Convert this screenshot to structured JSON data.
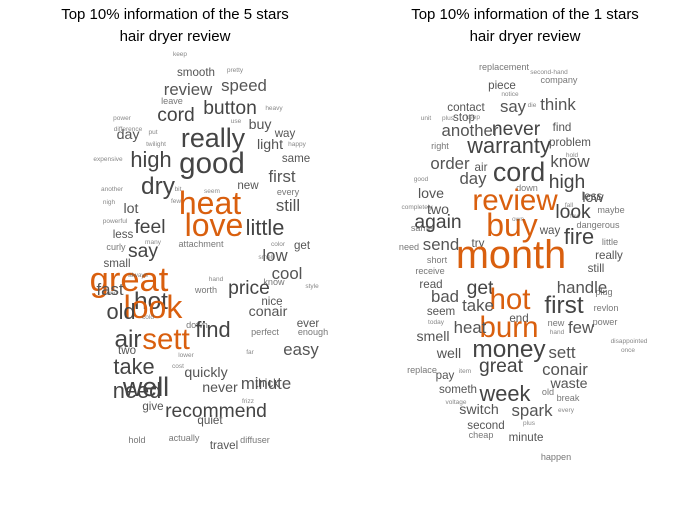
{
  "colors": {
    "grey": "#555555",
    "orange": "#d95f0e",
    "dark": "#444444"
  },
  "panels": [
    {
      "title_line1": "Top 10% information of the 5 stars",
      "title_line2": "hair dryer review",
      "words": [
        {
          "t": "keep",
          "w": 1
        },
        {
          "t": "smooth",
          "w": 3
        },
        {
          "t": "pretty",
          "w": 1
        },
        {
          "t": "review",
          "w": 5
        },
        {
          "t": "speed",
          "w": 5
        },
        {
          "t": "leave",
          "w": 2
        },
        {
          "t": "button",
          "w": 6
        },
        {
          "t": "cord",
          "w": 6
        },
        {
          "t": "heavy",
          "w": 1
        },
        {
          "t": "power",
          "w": 1
        },
        {
          "t": "difference",
          "w": 1
        },
        {
          "t": "use",
          "w": 1
        },
        {
          "t": "buy",
          "w": 4
        },
        {
          "t": "day",
          "w": 4
        },
        {
          "t": "put",
          "w": 1
        },
        {
          "t": "really",
          "w": 9
        },
        {
          "t": "way",
          "w": 3
        },
        {
          "t": "twilight",
          "w": 1
        },
        {
          "t": "light",
          "w": 4
        },
        {
          "t": "happy",
          "w": 1
        },
        {
          "t": "expensive",
          "w": 1
        },
        {
          "t": "high",
          "w": 7
        },
        {
          "t": "good",
          "w": 10
        },
        {
          "t": "same",
          "w": 3
        },
        {
          "t": "first",
          "w": 5
        },
        {
          "t": "another",
          "w": 1
        },
        {
          "t": "dry",
          "w": 8
        },
        {
          "t": "bit",
          "w": 1
        },
        {
          "t": "seem",
          "w": 1
        },
        {
          "t": "new",
          "w": 3
        },
        {
          "t": "every",
          "w": 2
        },
        {
          "t": "nigh",
          "w": 1
        },
        {
          "t": "few",
          "w": 1
        },
        {
          "t": "heat",
          "w": 11,
          "c": "orange"
        },
        {
          "t": "still",
          "w": 5
        },
        {
          "t": "lot",
          "w": 4
        },
        {
          "t": "powerful",
          "w": 1
        },
        {
          "t": "feel",
          "w": 6
        },
        {
          "t": "little",
          "w": 7
        },
        {
          "t": "less",
          "w": 3
        },
        {
          "t": "love",
          "w": 11,
          "c": "orange"
        },
        {
          "t": "curly",
          "w": 2
        },
        {
          "t": "many",
          "w": 1
        },
        {
          "t": "color",
          "w": 1
        },
        {
          "t": "get",
          "w": 3
        },
        {
          "t": "say",
          "w": 6
        },
        {
          "t": "low",
          "w": 5
        },
        {
          "t": "smell",
          "w": 1
        },
        {
          "t": "small",
          "w": 3
        },
        {
          "t": "great",
          "w": 12,
          "c": "orange"
        },
        {
          "t": "attachment",
          "w": 2
        },
        {
          "t": "cool",
          "w": 5
        },
        {
          "t": "always",
          "w": 1
        },
        {
          "t": "fast",
          "w": 5
        },
        {
          "t": "hand",
          "w": 1
        },
        {
          "t": "price",
          "w": 6
        },
        {
          "t": "know",
          "w": 2
        },
        {
          "t": "style",
          "w": 1
        },
        {
          "t": "and",
          "w": 1
        },
        {
          "t": "hot",
          "w": 8
        },
        {
          "t": "look",
          "w": 11,
          "c": "orange"
        },
        {
          "t": "worth",
          "w": 2
        },
        {
          "t": "nice",
          "w": 3
        },
        {
          "t": "old",
          "w": 7
        },
        {
          "t": "conair",
          "w": 4
        },
        {
          "t": "cold",
          "w": 1
        },
        {
          "t": "down",
          "w": 2
        },
        {
          "t": "ever",
          "w": 3
        },
        {
          "t": "air",
          "w": 8
        },
        {
          "t": "sett",
          "w": 10,
          "c": "orange"
        },
        {
          "t": "find",
          "w": 7
        },
        {
          "t": "perfect",
          "w": 2
        },
        {
          "t": "enough",
          "w": 2
        },
        {
          "t": "two",
          "w": 3
        },
        {
          "t": "easy",
          "w": 5
        },
        {
          "t": "take",
          "w": 7
        },
        {
          "t": "far",
          "w": 1
        },
        {
          "t": "lower",
          "w": 1
        },
        {
          "t": "well",
          "w": 9
        },
        {
          "t": "cost",
          "w": 1
        },
        {
          "t": "quickly",
          "w": 4
        },
        {
          "t": "minute",
          "w": 5
        },
        {
          "t": "need",
          "w": 7
        },
        {
          "t": "never",
          "w": 4
        },
        {
          "t": "thick",
          "w": 3
        },
        {
          "t": "give",
          "w": 3
        },
        {
          "t": "recommend",
          "w": 6
        },
        {
          "t": "frizz",
          "w": 1
        },
        {
          "t": "quiet",
          "w": 3
        },
        {
          "t": "hold",
          "w": 2
        },
        {
          "t": "actually",
          "w": 2
        },
        {
          "t": "travel",
          "w": 3
        },
        {
          "t": "diffuser",
          "w": 2
        }
      ]
    },
    {
      "title_line1": "Top 10% information of the 1 stars",
      "title_line2": "hair dryer review",
      "words": [
        {
          "t": "replacement",
          "w": 2
        },
        {
          "t": "second-hand",
          "w": 1
        },
        {
          "t": "piece",
          "w": 3
        },
        {
          "t": "company",
          "w": 2
        },
        {
          "t": "notice",
          "w": 1
        },
        {
          "t": "contact",
          "w": 3
        },
        {
          "t": "say",
          "w": 5
        },
        {
          "t": "die",
          "w": 1
        },
        {
          "t": "think",
          "w": 5
        },
        {
          "t": "unit",
          "w": 1
        },
        {
          "t": "stop",
          "w": 3
        },
        {
          "t": "keep",
          "w": 1
        },
        {
          "t": "plus",
          "w": 1
        },
        {
          "t": "never",
          "w": 6
        },
        {
          "t": "find",
          "w": 3
        },
        {
          "t": "another",
          "w": 5
        },
        {
          "t": "problem",
          "w": 3
        },
        {
          "t": "right",
          "w": 2
        },
        {
          "t": "warranty",
          "w": 7
        },
        {
          "t": "hold",
          "w": 1
        },
        {
          "t": "know",
          "w": 5
        },
        {
          "t": "order",
          "w": 5
        },
        {
          "t": "air",
          "w": 3
        },
        {
          "t": "cord",
          "w": 9
        },
        {
          "t": "good",
          "w": 1
        },
        {
          "t": "day",
          "w": 5
        },
        {
          "t": "down",
          "w": 2
        },
        {
          "t": "high",
          "w": 6
        },
        {
          "t": "less",
          "w": 3
        },
        {
          "t": "love",
          "w": 4
        },
        {
          "t": "review",
          "w": 10,
          "c": "orange"
        },
        {
          "t": "low",
          "w": 4
        },
        {
          "t": "two",
          "w": 4
        },
        {
          "t": "fall",
          "w": 1
        },
        {
          "t": "maybe",
          "w": 2
        },
        {
          "t": "completely",
          "w": 1
        },
        {
          "t": "buy",
          "w": 11,
          "c": "orange"
        },
        {
          "t": "look",
          "w": 6
        },
        {
          "t": "dangerous",
          "w": 2
        },
        {
          "t": "few",
          "w": 1
        },
        {
          "t": "again",
          "w": 6
        },
        {
          "t": "own",
          "w": 1
        },
        {
          "t": "same",
          "w": 2
        },
        {
          "t": "way",
          "w": 3
        },
        {
          "t": "fire",
          "w": 7
        },
        {
          "t": "send",
          "w": 5
        },
        {
          "t": "try",
          "w": 3
        },
        {
          "t": "little",
          "w": 2
        },
        {
          "t": "need",
          "w": 2
        },
        {
          "t": "month",
          "w": 14,
          "c": "orange"
        },
        {
          "t": "really",
          "w": 3
        },
        {
          "t": "short",
          "w": 2
        },
        {
          "t": "still",
          "w": 3
        },
        {
          "t": "receive",
          "w": 2
        },
        {
          "t": "read",
          "w": 3
        },
        {
          "t": "get",
          "w": 6
        },
        {
          "t": "handle",
          "w": 5
        },
        {
          "t": "plug",
          "w": 2
        },
        {
          "t": "bad",
          "w": 5
        },
        {
          "t": "hot",
          "w": 10,
          "c": "orange"
        },
        {
          "t": "first",
          "w": 8
        },
        {
          "t": "revlon",
          "w": 2
        },
        {
          "t": "seem",
          "w": 3
        },
        {
          "t": "take",
          "w": 5
        },
        {
          "t": "end",
          "w": 3
        },
        {
          "t": "today",
          "w": 1
        },
        {
          "t": "burn",
          "w": 10,
          "c": "orange"
        },
        {
          "t": "new",
          "w": 2
        },
        {
          "t": "power",
          "w": 2
        },
        {
          "t": "heat",
          "w": 5
        },
        {
          "t": "few",
          "w": 5
        },
        {
          "t": "smell",
          "w": 4
        },
        {
          "t": "money",
          "w": 8
        },
        {
          "t": "hand",
          "w": 1
        },
        {
          "t": "disappointed",
          "w": 1
        },
        {
          "t": "once",
          "w": 1
        },
        {
          "t": "well",
          "w": 4
        },
        {
          "t": "sett",
          "w": 5
        },
        {
          "t": "replace",
          "w": 2
        },
        {
          "t": "pay",
          "w": 3
        },
        {
          "t": "item",
          "w": 1
        },
        {
          "t": "great",
          "w": 6
        },
        {
          "t": "conair",
          "w": 5
        },
        {
          "t": "someth",
          "w": 3
        },
        {
          "t": "week",
          "w": 7
        },
        {
          "t": "waste",
          "w": 4
        },
        {
          "t": "old",
          "w": 2
        },
        {
          "t": "voltage",
          "w": 1
        },
        {
          "t": "break",
          "w": 2
        },
        {
          "t": "switch",
          "w": 4
        },
        {
          "t": "spark",
          "w": 5
        },
        {
          "t": "every",
          "w": 1
        },
        {
          "t": "second",
          "w": 3
        },
        {
          "t": "plus",
          "w": 1
        },
        {
          "t": "cheap",
          "w": 2
        },
        {
          "t": "minute",
          "w": 3
        },
        {
          "t": "happen",
          "w": 2
        }
      ]
    }
  ]
}
